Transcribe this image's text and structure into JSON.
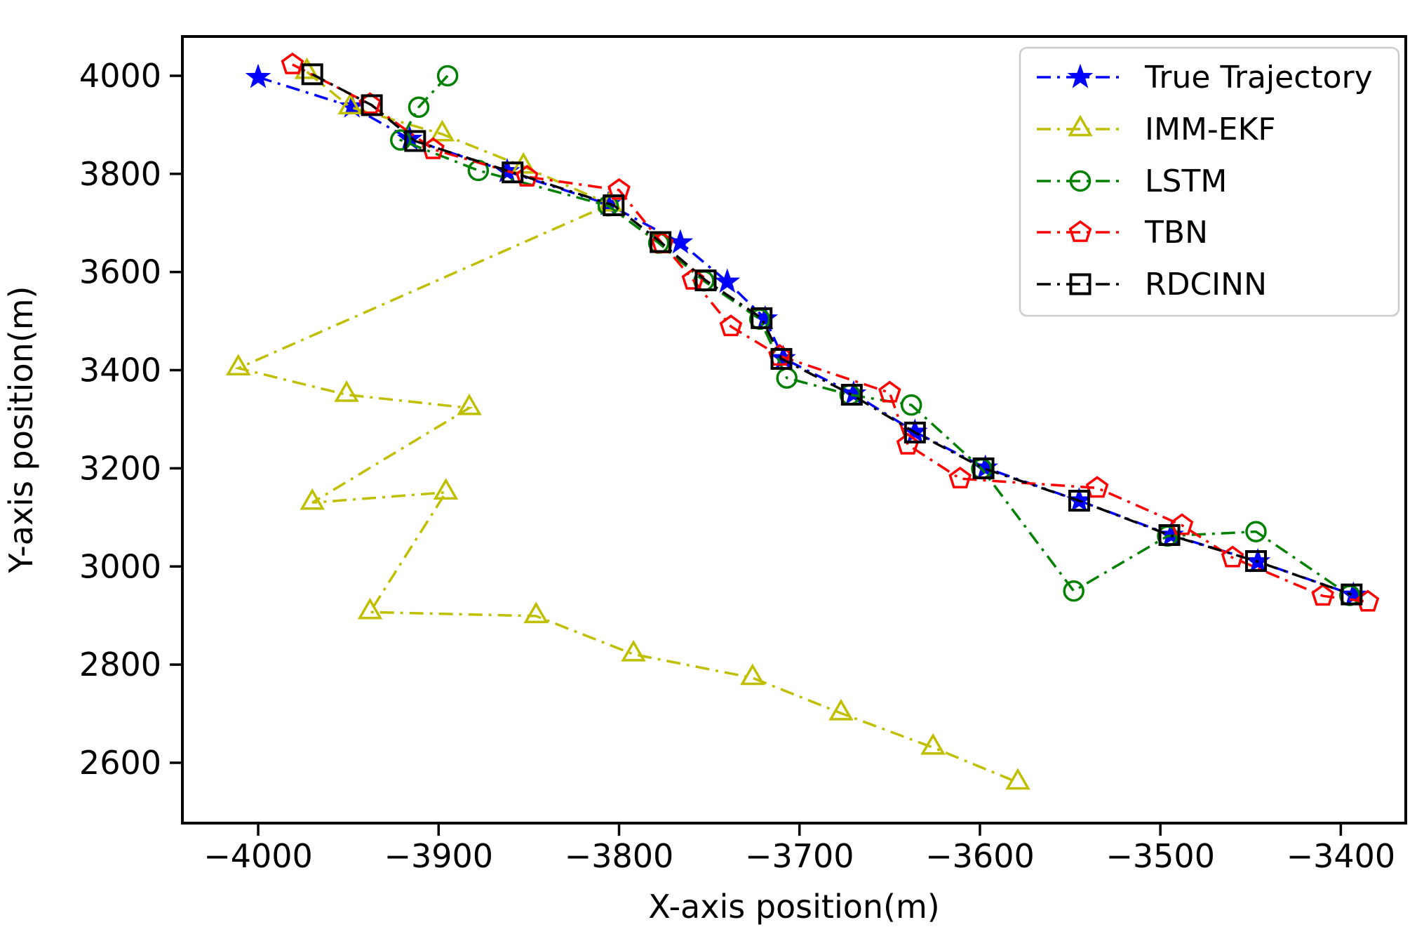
{
  "figure": {
    "title": "",
    "background": "#ffffff",
    "frame_color": "#000000"
  },
  "chart_data": {
    "type": "line",
    "title": "",
    "xlabel": "X-axis position(m)",
    "ylabel": "Y-axis position(m)",
    "xlim": [
      -4042,
      -3364
    ],
    "ylim": [
      2477,
      4080
    ],
    "x_ticks": [
      -4000,
      -3900,
      -3800,
      -3700,
      -3600,
      -3500,
      -3400
    ],
    "y_ticks": [
      2600,
      2800,
      3000,
      3200,
      3400,
      3600,
      3800,
      4000
    ],
    "grid": false,
    "line_style": "dash-dot",
    "legend_position": "upper right",
    "legend_border_color": "#cccccc",
    "series": [
      {
        "name": "True Trajectory",
        "color": "#0000ff",
        "marker": "star",
        "marker_filled": true,
        "points": [
          [
            -4000,
            3997
          ],
          [
            -3948,
            3937
          ],
          [
            -3916,
            3871
          ],
          [
            -3862,
            3805
          ],
          [
            -3806,
            3738
          ],
          [
            -3766,
            3660
          ],
          [
            -3740,
            3580
          ],
          [
            -3719,
            3505
          ],
          [
            -3709,
            3424
          ],
          [
            -3670,
            3352
          ],
          [
            -3636,
            3274
          ],
          [
            -3597,
            3201
          ],
          [
            -3545,
            3134
          ],
          [
            -3494,
            3064
          ],
          [
            -3446,
            3010
          ],
          [
            -3393,
            2942
          ]
        ]
      },
      {
        "name": "IMM-EKF",
        "color": "#bfbf00",
        "marker": "triangle",
        "marker_filled": false,
        "points": [
          [
            -3973,
            4008
          ],
          [
            -3949,
            3936
          ],
          [
            -3898,
            3881
          ],
          [
            -3853,
            3815
          ],
          [
            -3805,
            3738
          ],
          [
            -4011,
            3404
          ],
          [
            -3951,
            3350
          ],
          [
            -3883,
            3323
          ],
          [
            -3970,
            3130
          ],
          [
            -3896,
            3151
          ],
          [
            -3938,
            2907
          ],
          [
            -3846,
            2899
          ],
          [
            -3792,
            2821
          ],
          [
            -3726,
            2773
          ],
          [
            -3677,
            2701
          ],
          [
            -3626,
            2631
          ],
          [
            -3579,
            2560
          ]
        ]
      },
      {
        "name": "LSTM",
        "color": "#008000",
        "marker": "circle",
        "marker_filled": false,
        "points": [
          [
            -3895,
            4000
          ],
          [
            -3911,
            3936
          ],
          [
            -3921,
            3869
          ],
          [
            -3878,
            3807
          ],
          [
            -3806,
            3735
          ],
          [
            -3778,
            3659
          ],
          [
            -3753,
            3582
          ],
          [
            -3722,
            3504
          ],
          [
            -3707,
            3384
          ],
          [
            -3672,
            3350
          ],
          [
            -3638,
            3329
          ],
          [
            -3599,
            3199
          ],
          [
            -3548,
            2950
          ],
          [
            -3496,
            3062
          ],
          [
            -3447,
            3071
          ],
          [
            -3395,
            2941
          ]
        ]
      },
      {
        "name": "TBN",
        "color": "#ff0000",
        "marker": "pentagon",
        "marker_filled": false,
        "points": [
          [
            -3981,
            4023
          ],
          [
            -3938,
            3942
          ],
          [
            -3903,
            3850
          ],
          [
            -3851,
            3794
          ],
          [
            -3800,
            3767
          ],
          [
            -3776,
            3658
          ],
          [
            -3759,
            3584
          ],
          [
            -3738,
            3489
          ],
          [
            -3711,
            3429
          ],
          [
            -3650,
            3354
          ],
          [
            -3640,
            3248
          ],
          [
            -3611,
            3179
          ],
          [
            -3535,
            3160
          ],
          [
            -3488,
            3084
          ],
          [
            -3460,
            3018
          ],
          [
            -3410,
            2940
          ],
          [
            -3385,
            2928
          ]
        ]
      },
      {
        "name": "RDCINN",
        "color": "#000000",
        "marker": "square",
        "marker_filled": false,
        "points": [
          [
            -3970,
            4003
          ],
          [
            -3937,
            3940
          ],
          [
            -3913,
            3867
          ],
          [
            -3859,
            3803
          ],
          [
            -3803,
            3736
          ],
          [
            -3777,
            3661
          ],
          [
            -3752,
            3583
          ],
          [
            -3721,
            3506
          ],
          [
            -3710,
            3423
          ],
          [
            -3671,
            3350
          ],
          [
            -3636,
            3273
          ],
          [
            -3598,
            3200
          ],
          [
            -3545,
            3134
          ],
          [
            -3495,
            3064
          ],
          [
            -3447,
            3011
          ],
          [
            -3394,
            2943
          ]
        ]
      }
    ]
  }
}
